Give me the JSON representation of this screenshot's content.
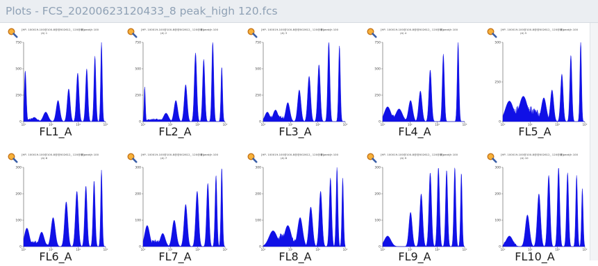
{
  "window": {
    "title": "Plots - FCS_20200623120433_8 peak_high 120.fcs"
  },
  "plot_header_text": "[HP- 100019-100@100-8@@002612_ 120@@]",
  "plot_peak_text": "8 peak|h 100",
  "colors": {
    "fill": "#1010e6",
    "axis": "#7a7a7a",
    "titlebar": "#ebeef2",
    "title_text": "#8fa1b5"
  },
  "icons": {
    "zoom": "magnifier-zoom-icon"
  },
  "chart_data": [
    {
      "type": "area",
      "title": "FL1_A",
      "sub": "(A) 1",
      "x_scale": "log",
      "ymax": 750,
      "yticks": [
        0,
        250,
        500,
        750
      ],
      "xticks_label": [
        "10⁰",
        "10²",
        "10⁴",
        "10⁶"
      ],
      "peaks": [
        {
          "x": 0.02,
          "y": 480,
          "w": 0.012
        },
        {
          "x": 0.13,
          "y": 40,
          "w": 0.03
        },
        {
          "x": 0.27,
          "y": 90,
          "w": 0.03
        },
        {
          "x": 0.42,
          "y": 200,
          "w": 0.022
        },
        {
          "x": 0.55,
          "y": 310,
          "w": 0.018
        },
        {
          "x": 0.66,
          "y": 460,
          "w": 0.016
        },
        {
          "x": 0.77,
          "y": 500,
          "w": 0.014
        },
        {
          "x": 0.87,
          "y": 620,
          "w": 0.012
        },
        {
          "x": 0.95,
          "y": 750,
          "w": 0.01
        }
      ],
      "noise": [
        {
          "from": 0.0,
          "to": 0.2,
          "level": 30
        }
      ]
    },
    {
      "type": "area",
      "title": "FL2_A",
      "sub": "(A) 2",
      "x_scale": "log",
      "ymax": 750,
      "yticks": [
        0,
        250,
        500,
        750
      ],
      "xticks_label": [
        "10⁰",
        "10²",
        "10⁴",
        "10⁶"
      ],
      "peaks": [
        {
          "x": 0.02,
          "y": 330,
          "w": 0.008
        },
        {
          "x": 0.28,
          "y": 80,
          "w": 0.03
        },
        {
          "x": 0.4,
          "y": 200,
          "w": 0.022
        },
        {
          "x": 0.52,
          "y": 350,
          "w": 0.018
        },
        {
          "x": 0.64,
          "y": 650,
          "w": 0.015
        },
        {
          "x": 0.74,
          "y": 590,
          "w": 0.014
        },
        {
          "x": 0.85,
          "y": 760,
          "w": 0.012
        },
        {
          "x": 0.96,
          "y": 520,
          "w": 0.01
        }
      ],
      "noise": [
        {
          "from": 0.0,
          "to": 0.3,
          "level": 25
        }
      ]
    },
    {
      "type": "area",
      "title": "FL3_A",
      "sub": "(A) 3",
      "x_scale": "log",
      "ymax": 750,
      "yticks": [
        0,
        250,
        500,
        750
      ],
      "xticks_label": [
        "10⁰",
        "10²",
        "10⁴",
        "10⁶"
      ],
      "peaks": [
        {
          "x": 0.05,
          "y": 90,
          "w": 0.03
        },
        {
          "x": 0.15,
          "y": 110,
          "w": 0.03
        },
        {
          "x": 0.3,
          "y": 180,
          "w": 0.025
        },
        {
          "x": 0.44,
          "y": 300,
          "w": 0.02
        },
        {
          "x": 0.56,
          "y": 430,
          "w": 0.018
        },
        {
          "x": 0.68,
          "y": 540,
          "w": 0.016
        },
        {
          "x": 0.8,
          "y": 760,
          "w": 0.013
        },
        {
          "x": 0.93,
          "y": 720,
          "w": 0.011
        }
      ],
      "noise": [
        {
          "from": 0.0,
          "to": 0.3,
          "level": 55
        }
      ]
    },
    {
      "type": "area",
      "title": "FL4_A",
      "sub": "(A) 4",
      "x_scale": "log",
      "ymax": 750,
      "yticks": [
        0,
        250,
        500,
        750
      ],
      "xticks_label": [
        "10⁰",
        "10²",
        "10⁴",
        "10⁶"
      ],
      "peaks": [
        {
          "x": 0.06,
          "y": 140,
          "w": 0.04
        },
        {
          "x": 0.2,
          "y": 120,
          "w": 0.04
        },
        {
          "x": 0.34,
          "y": 200,
          "w": 0.025
        },
        {
          "x": 0.46,
          "y": 290,
          "w": 0.02
        },
        {
          "x": 0.58,
          "y": 490,
          "w": 0.016
        },
        {
          "x": 0.74,
          "y": 640,
          "w": 0.013
        },
        {
          "x": 0.92,
          "y": 750,
          "w": 0.011
        }
      ],
      "noise": [
        {
          "from": 0.0,
          "to": 0.3,
          "level": 60
        }
      ]
    },
    {
      "type": "area",
      "title": "FL5_A",
      "sub": "(A) 5",
      "x_scale": "log",
      "ymax": 500,
      "yticks": [
        0,
        250,
        500
      ],
      "xticks_label": [
        "10⁰",
        "10²",
        "10⁴",
        "10⁶"
      ],
      "peaks": [
        {
          "x": 0.08,
          "y": 130,
          "w": 0.05
        },
        {
          "x": 0.25,
          "y": 160,
          "w": 0.05
        },
        {
          "x": 0.5,
          "y": 150,
          "w": 0.03
        },
        {
          "x": 0.6,
          "y": 200,
          "w": 0.02
        },
        {
          "x": 0.72,
          "y": 300,
          "w": 0.016
        },
        {
          "x": 0.83,
          "y": 420,
          "w": 0.013
        },
        {
          "x": 0.95,
          "y": 510,
          "w": 0.01
        }
      ],
      "noise": [
        {
          "from": 0.02,
          "to": 0.48,
          "level": 95
        }
      ]
    },
    {
      "type": "area",
      "title": "FL6_A",
      "sub": "(A) 6",
      "x_scale": "log",
      "ymax": 300,
      "yticks": [
        0,
        100,
        200,
        300
      ],
      "xticks_label": [
        "10⁰",
        "10²",
        "10⁴",
        "10⁶"
      ],
      "peaks": [
        {
          "x": 0.04,
          "y": 70,
          "w": 0.03
        },
        {
          "x": 0.22,
          "y": 55,
          "w": 0.03
        },
        {
          "x": 0.36,
          "y": 110,
          "w": 0.025
        },
        {
          "x": 0.52,
          "y": 170,
          "w": 0.02
        },
        {
          "x": 0.65,
          "y": 210,
          "w": 0.018
        },
        {
          "x": 0.76,
          "y": 230,
          "w": 0.015
        },
        {
          "x": 0.86,
          "y": 250,
          "w": 0.013
        },
        {
          "x": 0.95,
          "y": 290,
          "w": 0.01
        }
      ],
      "noise": [
        {
          "from": 0.0,
          "to": 0.3,
          "level": 20
        }
      ]
    },
    {
      "type": "area",
      "title": "FL7_A",
      "sub": "(A) 7",
      "x_scale": "log",
      "ymax": 300,
      "yticks": [
        0,
        100,
        200,
        300
      ],
      "xticks_label": [
        "10⁰",
        "10²",
        "10⁴",
        "10⁶"
      ],
      "peaks": [
        {
          "x": 0.05,
          "y": 80,
          "w": 0.03
        },
        {
          "x": 0.24,
          "y": 50,
          "w": 0.03
        },
        {
          "x": 0.38,
          "y": 100,
          "w": 0.025
        },
        {
          "x": 0.52,
          "y": 160,
          "w": 0.02
        },
        {
          "x": 0.66,
          "y": 210,
          "w": 0.018
        },
        {
          "x": 0.79,
          "y": 240,
          "w": 0.015
        },
        {
          "x": 0.89,
          "y": 270,
          "w": 0.012
        },
        {
          "x": 0.96,
          "y": 300,
          "w": 0.01
        }
      ],
      "noise": [
        {
          "from": 0.0,
          "to": 0.3,
          "level": 22
        }
      ]
    },
    {
      "type": "area",
      "title": "FL8_A",
      "sub": "(A) 8",
      "x_scale": "log",
      "ymax": 300,
      "yticks": [
        0,
        100,
        200,
        300
      ],
      "xticks_label": [
        "10⁰",
        "10²",
        "10⁴",
        "10⁶"
      ],
      "peaks": [
        {
          "x": 0.12,
          "y": 60,
          "w": 0.05
        },
        {
          "x": 0.3,
          "y": 80,
          "w": 0.04
        },
        {
          "x": 0.45,
          "y": 110,
          "w": 0.03
        },
        {
          "x": 0.58,
          "y": 150,
          "w": 0.022
        },
        {
          "x": 0.7,
          "y": 210,
          "w": 0.018
        },
        {
          "x": 0.82,
          "y": 260,
          "w": 0.014
        },
        {
          "x": 0.9,
          "y": 300,
          "w": 0.011
        },
        {
          "x": 0.97,
          "y": 260,
          "w": 0.01
        }
      ],
      "noise": [
        {
          "from": 0.05,
          "to": 0.42,
          "level": 45
        }
      ]
    },
    {
      "type": "area",
      "title": "FL9_A",
      "sub": "(A) 9",
      "x_scale": "log",
      "ymax": 300,
      "yticks": [
        0,
        100,
        200,
        300
      ],
      "xticks_label": [
        "10⁰",
        "10²",
        "10⁴",
        "10⁶"
      ],
      "peaks": [
        {
          "x": 0.06,
          "y": 40,
          "w": 0.04
        },
        {
          "x": 0.34,
          "y": 130,
          "w": 0.02
        },
        {
          "x": 0.47,
          "y": 200,
          "w": 0.018
        },
        {
          "x": 0.58,
          "y": 280,
          "w": 0.016
        },
        {
          "x": 0.68,
          "y": 300,
          "w": 0.014
        },
        {
          "x": 0.78,
          "y": 290,
          "w": 0.013
        },
        {
          "x": 0.88,
          "y": 300,
          "w": 0.012
        },
        {
          "x": 0.96,
          "y": 280,
          "w": 0.01
        }
      ],
      "noise": [
        {
          "from": 0.0,
          "to": 0.12,
          "level": 15
        }
      ]
    },
    {
      "type": "area",
      "title": "FL10_A",
      "sub": "(A) 10",
      "x_scale": "log",
      "ymax": 300,
      "yticks": [
        0,
        100,
        200,
        300
      ],
      "xticks_label": [
        "10⁰",
        "10²",
        "10⁴",
        "10⁶"
      ],
      "peaks": [
        {
          "x": 0.08,
          "y": 40,
          "w": 0.04
        },
        {
          "x": 0.3,
          "y": 120,
          "w": 0.025
        },
        {
          "x": 0.44,
          "y": 200,
          "w": 0.02
        },
        {
          "x": 0.56,
          "y": 270,
          "w": 0.016
        },
        {
          "x": 0.68,
          "y": 300,
          "w": 0.014
        },
        {
          "x": 0.79,
          "y": 280,
          "w": 0.013
        },
        {
          "x": 0.9,
          "y": 270,
          "w": 0.011
        },
        {
          "x": 0.97,
          "y": 220,
          "w": 0.01
        }
      ],
      "noise": [
        {
          "from": 0.0,
          "to": 0.16,
          "level": 22
        }
      ]
    }
  ]
}
